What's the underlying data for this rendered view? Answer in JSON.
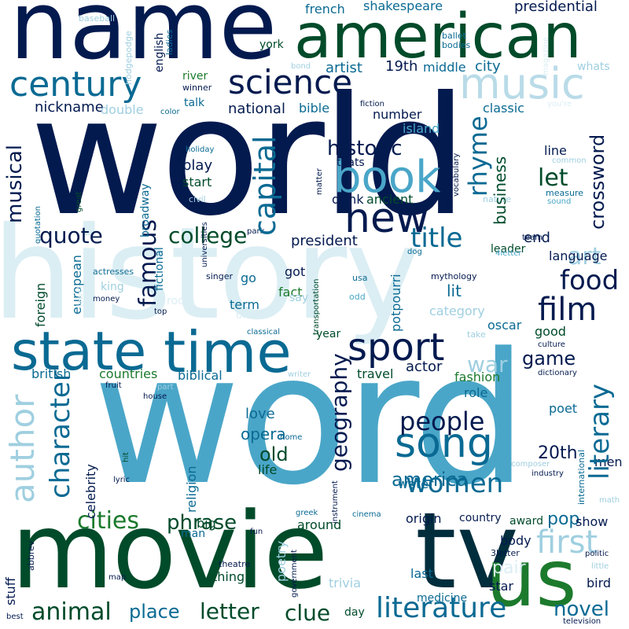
{
  "palette": {
    "navy": "#031a4f",
    "dark_green": "#004b2a",
    "deep_teal": "#002e3c",
    "teal": "#0a6a93",
    "sky": "#4aa6c8",
    "light": "#9fcfe0",
    "pale": "#dbeef4",
    "green": "#1c7a2d"
  },
  "words": {
    "world": "world",
    "word": "word",
    "history": "history",
    "name": "name",
    "american": "american",
    "movie": "movie",
    "tv": "tv",
    "us": "us",
    "state": "state",
    "time": "time",
    "century": "century",
    "science": "science",
    "music": "music",
    "book": "book",
    "new": "new",
    "sport": "sport",
    "author": "author",
    "character": "character",
    "song": "song",
    "literature": "literature",
    "animal": "animal",
    "cities": "cities",
    "film": "film",
    "food": "food",
    "geography": "geography",
    "literary": "literary",
    "women": "women",
    "first": "first",
    "people": "people",
    "capital": "capital",
    "famous": "famous",
    "title": "title",
    "college": "college",
    "historic": "historic",
    "rhyme": "rhyme",
    "crossword": "crossword",
    "business": "business",
    "musical": "musical",
    "quote": "quote",
    "letter": "letter",
    "clue": "clue",
    "place": "place",
    "phrase": "phrase",
    "novel": "novel",
    "america": "america",
    "art": "art",
    "let": "let",
    "game": "game",
    "war": "war",
    "pop": "pop",
    "old": "old",
    "opera": "opera",
    "love": "love",
    "20th": "20th",
    "shakespeare": "shakespeare",
    "french": "french",
    "presidential": "presidential",
    "nickname": "nickname",
    "national": "national",
    "artist": "artist",
    "19th": "19th",
    "middle": "middle",
    "city": "city",
    "president": "president",
    "british": "british",
    "countries": "countries",
    "biblical": "biblical",
    "end": "end",
    "play": "play",
    "start": "start",
    "drink": "drink",
    "ancient": "ancient",
    "double": "double",
    "bible": "bible",
    "number": "number",
    "island": "island",
    "classic": "classic",
    "talk": "talk",
    "river": "river",
    "winner": "winner",
    "english": "english",
    "york": "york",
    "baseball": "baseball",
    "hodgepodge": "hodgepodge",
    "ladies": "ladies",
    "bond": "bond",
    "ballet": "ballet",
    "bodies": "bodies",
    "magazine": "magazine",
    "whats": "whats",
    "fiction": "fiction",
    "youre": "you're",
    "color": "color",
    "holiday": "holiday",
    "thats": "thats",
    "line": "line",
    "vocabulary": "vocabulary",
    "common": "common",
    "measure": "measure",
    "sound": "sound",
    "nature": "nature",
    "matter": "matter",
    "civil": "civil",
    "broadway": "broadway",
    "quotation": "quotation",
    "great": "great",
    "european": "european",
    "foreign": "foreign",
    "king": "king",
    "fictional": "fictional",
    "universities": "universities",
    "park": "park",
    "dog": "dog",
    "leader": "leader",
    "team": "team",
    "4letter": "4letter",
    "language": "language",
    "actresses": "actresses",
    "jewel": "jewel",
    "money": "money",
    "singer": "singer",
    "go": "go",
    "got": "got",
    "transportation": "transportation",
    "term": "term",
    "fact": "fact",
    "say": "say",
    "one": "one",
    "usa": "usa",
    "odd": "odd",
    "mythology": "mythology",
    "potpourri": "potpourri",
    "lit": "lit",
    "category": "category",
    "oscar": "oscar",
    "take": "take",
    "culture": "culture",
    "dictionary": "dictionary",
    "year": "year",
    "actor": "actor",
    "travel": "travel",
    "fashion": "fashion",
    "role": "role",
    "good": "good",
    "top": "top",
    "rock": "rock",
    "classical": "classical",
    "writer": "writer",
    "fruit": "fruit",
    "part": "part",
    "house": "house",
    "religion": "religion",
    "celebrity": "celebrity",
    "big": "big",
    "life": "life",
    "water": "water",
    "home": "home",
    "instrument": "instrument",
    "composer": "composer",
    "industry": "industry",
    "international": "international",
    "poet": "poet",
    "men": "men",
    "math": "math",
    "hit": "hit",
    "lyric": "lyric",
    "greek": "greek",
    "cinema": "cinema",
    "around": "around",
    "origin": "origin",
    "country": "country",
    "award": "award",
    "show": "show",
    "body": "body",
    "man": "man",
    "fun": "fun",
    "poetry": "poetry",
    "theatre": "theatre",
    "government": "government",
    "3letter": "3letter",
    "politic": "politic",
    "little": "little",
    "map": "map",
    "thing": "thing",
    "stuff": "stuff",
    "abbrev": "abbrev",
    "best": "best",
    "trivia": "trivia",
    "last": "last",
    "medicine": "medicine",
    "star": "star",
    "pair": "pair",
    "bird": "bird",
    "day": "day",
    "television": "television"
  }
}
